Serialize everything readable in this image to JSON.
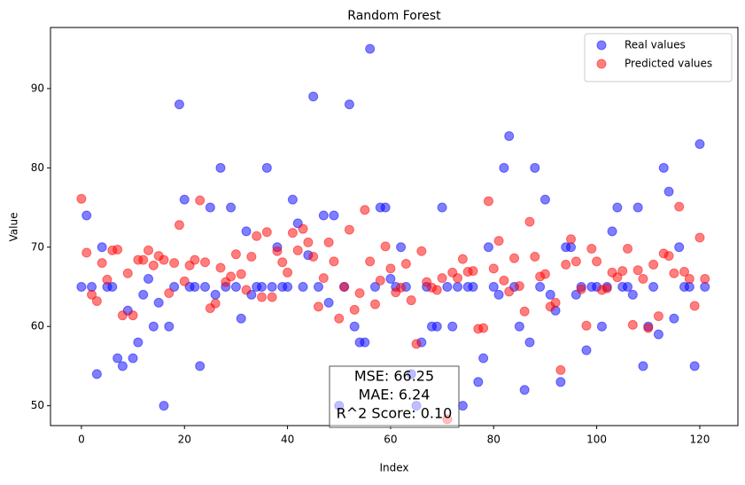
{
  "chart_data": {
    "type": "scatter",
    "title": "Random Forest",
    "x_label": "Index",
    "y_label": "Value",
    "x": [
      0,
      1,
      2,
      3,
      4,
      5,
      6,
      7,
      8,
      9,
      10,
      11,
      12,
      13,
      14,
      15,
      16,
      17,
      18,
      19,
      20,
      21,
      22,
      23,
      24,
      25,
      26,
      27,
      28,
      29,
      30,
      31,
      32,
      33,
      34,
      35,
      36,
      37,
      38,
      39,
      40,
      41,
      42,
      43,
      44,
      45,
      46,
      47,
      48,
      49,
      50,
      51,
      52,
      53,
      54,
      55,
      56,
      57,
      58,
      59,
      60,
      61,
      62,
      63,
      64,
      65,
      66,
      67,
      68,
      69,
      70,
      71,
      72,
      73,
      74,
      75,
      76,
      77,
      78,
      79,
      80,
      81,
      82,
      83,
      84,
      85,
      86,
      87,
      88,
      89,
      90,
      91,
      92,
      93,
      94,
      95,
      96,
      97,
      98,
      99,
      100,
      101,
      102,
      103,
      104,
      105,
      106,
      107,
      108,
      109,
      110,
      111,
      112,
      113,
      114,
      115,
      116,
      117,
      118,
      119,
      120,
      121
    ],
    "series": [
      {
        "name": "Real values",
        "color": "#0000ff",
        "values": [
          65,
          74,
          65,
          54,
          70,
          65,
          65,
          56,
          55,
          62,
          56,
          58,
          64,
          66,
          60,
          63,
          50,
          60,
          65,
          88,
          76,
          65,
          65,
          55,
          65,
          75,
          64,
          80,
          65,
          75,
          65,
          61,
          72,
          64,
          65,
          65,
          80,
          65,
          70,
          65,
          65,
          76,
          73,
          65,
          69,
          89,
          65,
          74,
          63,
          74,
          50,
          65,
          88,
          60,
          58,
          58,
          95,
          65,
          75,
          75,
          66,
          65,
          70,
          65,
          54,
          50,
          58,
          65,
          60,
          60,
          75,
          65,
          60,
          65,
          50,
          65,
          65,
          53,
          56,
          70,
          65,
          64,
          80,
          84,
          65,
          60,
          52,
          58,
          80,
          65,
          76,
          64,
          62,
          53,
          70,
          70,
          64,
          65,
          57,
          65,
          65,
          60,
          65,
          72,
          75,
          65,
          65,
          64,
          75,
          55,
          60,
          65,
          59,
          80,
          77,
          61,
          70,
          65,
          65,
          55,
          83,
          65
        ]
      },
      {
        "name": "Predicted values",
        "color": "#ff0000",
        "values": [
          76.1,
          69.3,
          64.0,
          63.2,
          68.0,
          65.9,
          69.6,
          69.7,
          61.4,
          66.7,
          61.4,
          68.4,
          68.4,
          69.6,
          67.7,
          68.9,
          68.4,
          64.2,
          68.0,
          72.8,
          65.7,
          67.7,
          68.4,
          75.9,
          68.1,
          62.3,
          62.9,
          67.4,
          65.6,
          66.3,
          69.1,
          66.6,
          64.6,
          68.8,
          71.4,
          63.7,
          71.9,
          63.7,
          69.5,
          68.1,
          66.8,
          71.8,
          69.6,
          72.3,
          70.6,
          68.8,
          62.5,
          66.1,
          70.6,
          68.2,
          61.0,
          65.0,
          72.2,
          62.1,
          64.2,
          74.7,
          68.2,
          62.8,
          65.8,
          70.1,
          67.3,
          64.3,
          64.9,
          67.9,
          63.3,
          57.8,
          69.5,
          65.6,
          64.9,
          64.6,
          66.1,
          48.3,
          66.8,
          66.1,
          68.5,
          66.9,
          67.0,
          59.7,
          59.8,
          75.8,
          67.3,
          70.8,
          65.8,
          64.4,
          68.6,
          65.1,
          61.9,
          73.2,
          68.8,
          66.3,
          66.6,
          62.5,
          63.0,
          54.5,
          67.8,
          71.0,
          68.2,
          64.7,
          60.1,
          69.8,
          68.2,
          64.6,
          64.8,
          66.8,
          66.2,
          67.0,
          69.8,
          60.2,
          67.1,
          66.0,
          59.8,
          67.8,
          61.3,
          69.2,
          68.9,
          66.7,
          75.1,
          66.9,
          66.0,
          62.6,
          71.2,
          66.0
        ]
      }
    ],
    "alpha": 0.5,
    "xlim": [
      -6,
      127.4
    ],
    "ylim": [
      47.5,
      97.7
    ],
    "xticks": [
      0,
      20,
      40,
      60,
      80,
      100,
      120
    ],
    "yticks": [
      50,
      60,
      70,
      80,
      90
    ],
    "grid": false,
    "legend": "upper right",
    "annotation": [
      "MSE: 66.25",
      "MAE: 6.24",
      "R^2 Score: 0.10"
    ]
  }
}
